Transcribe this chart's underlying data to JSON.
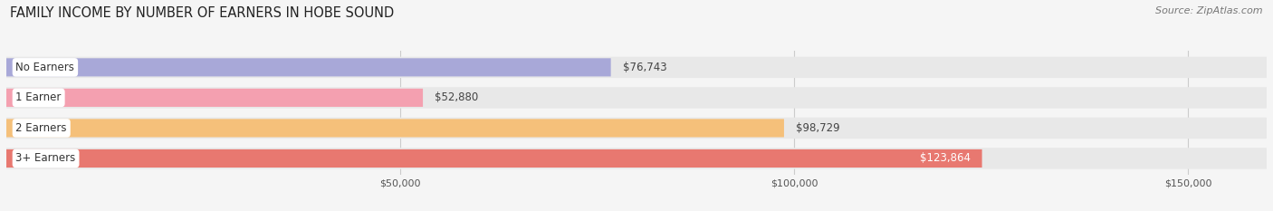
{
  "title": "FAMILY INCOME BY NUMBER OF EARNERS IN HOBE SOUND",
  "source": "Source: ZipAtlas.com",
  "categories": [
    "No Earners",
    "1 Earner",
    "2 Earners",
    "3+ Earners"
  ],
  "values": [
    76743,
    52880,
    98729,
    123864
  ],
  "bar_colors": [
    "#a8a8d8",
    "#f4a0b0",
    "#f5c07a",
    "#e87870"
  ],
  "bar_bg_color": "#e8e8e8",
  "label_colors": [
    "#444444",
    "#444444",
    "#444444",
    "#ffffff"
  ],
  "xmax": 160000,
  "xticks": [
    50000,
    100000,
    150000
  ],
  "xtick_labels": [
    "$50,000",
    "$100,000",
    "$150,000"
  ],
  "bg_color": "#f5f5f5",
  "title_fontsize": 10.5,
  "source_fontsize": 8,
  "bar_label_fontsize": 8.5,
  "category_fontsize": 8.5,
  "tick_fontsize": 8
}
